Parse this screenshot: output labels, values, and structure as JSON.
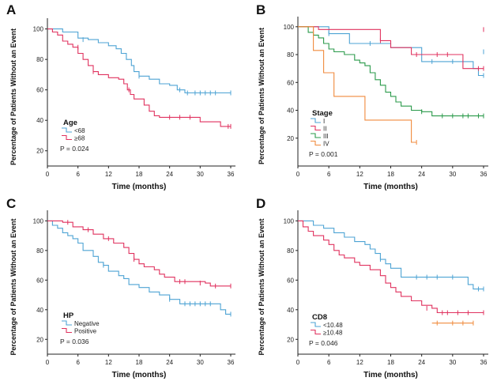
{
  "chart_data": [
    {
      "panel_label": "A",
      "type": "line",
      "step": true,
      "xlabel": "Time (months)",
      "ylabel": "Percentage of Patients Without an Event",
      "xlim": [
        0,
        36
      ],
      "ylim": [
        10,
        105
      ],
      "xticks": [
        0,
        6,
        12,
        18,
        24,
        30,
        36
      ],
      "yticks": [
        20,
        40,
        60,
        80,
        100
      ],
      "legend_title": "Age",
      "pvalue": "P = 0.024",
      "series": [
        {
          "name": "<68",
          "color": "#4da3d4",
          "points": [
            [
              0,
              100
            ],
            [
              3,
              98
            ],
            [
              6,
              94
            ],
            [
              8,
              93
            ],
            [
              10,
              91
            ],
            [
              12,
              89
            ],
            [
              13.5,
              87
            ],
            [
              14.5,
              84
            ],
            [
              15.5,
              80
            ],
            [
              16.5,
              76
            ],
            [
              17,
              72
            ],
            [
              18,
              69
            ],
            [
              20,
              67
            ],
            [
              22,
              64
            ],
            [
              24,
              63
            ],
            [
              25.5,
              60
            ],
            [
              27,
              58
            ],
            [
              36,
              58
            ]
          ],
          "censored": [
            [
              7,
              93
            ],
            [
              18,
              69
            ],
            [
              26,
              60
            ],
            [
              27.5,
              58
            ],
            [
              29,
              58
            ],
            [
              30,
              58
            ],
            [
              31,
              58
            ],
            [
              32,
              58
            ],
            [
              33,
              58
            ],
            [
              36,
              58
            ]
          ]
        },
        {
          "name": "≥68",
          "color": "#e0325f",
          "points": [
            [
              0,
              100
            ],
            [
              1,
              98
            ],
            [
              2,
              96
            ],
            [
              3,
              92
            ],
            [
              4,
              90
            ],
            [
              5,
              88
            ],
            [
              6,
              84
            ],
            [
              7,
              80
            ],
            [
              8,
              76
            ],
            [
              9,
              72
            ],
            [
              10,
              70
            ],
            [
              12,
              68
            ],
            [
              14,
              67
            ],
            [
              15,
              64
            ],
            [
              15.7,
              60
            ],
            [
              16.3,
              57
            ],
            [
              17,
              54
            ],
            [
              19,
              50
            ],
            [
              20,
              46
            ],
            [
              21,
              43
            ],
            [
              22,
              42
            ],
            [
              30,
              39
            ],
            [
              34,
              36
            ],
            [
              36,
              36
            ]
          ],
          "censored": [
            [
              6,
              88
            ],
            [
              9,
              72
            ],
            [
              16,
              60
            ],
            [
              24,
              42
            ],
            [
              26,
              42
            ],
            [
              28,
              42
            ],
            [
              35.5,
              36
            ],
            [
              36,
              36
            ]
          ]
        }
      ]
    },
    {
      "panel_label": "B",
      "type": "line",
      "step": true,
      "xlabel": "Time (months)",
      "ylabel": "Percentage of Patients Without an Event",
      "xlim": [
        0,
        36
      ],
      "ylim": [
        0,
        105
      ],
      "xticks": [
        0,
        6,
        12,
        18,
        24,
        30,
        36
      ],
      "yticks": [
        20,
        40,
        60,
        80,
        100
      ],
      "legend_title": "Stage",
      "pvalue": "P = 0.001",
      "series": [
        {
          "name": "I",
          "color": "#4da3d4",
          "points": [
            [
              0,
              100
            ],
            [
              6,
              95
            ],
            [
              10,
              88
            ],
            [
              18,
              85
            ],
            [
              24,
              75
            ],
            [
              34,
              70
            ],
            [
              35,
              65
            ],
            [
              36,
              65
            ]
          ],
          "censored": [
            [
              6,
              95
            ],
            [
              14,
              88
            ],
            [
              26,
              75
            ],
            [
              30,
              75
            ],
            [
              36,
              65
            ],
            [
              36,
              82
            ]
          ]
        },
        {
          "name": "II",
          "color": "#e0325f",
          "points": [
            [
              0,
              100
            ],
            [
              4,
              98
            ],
            [
              16,
              90
            ],
            [
              18,
              85
            ],
            [
              22,
              80
            ],
            [
              32,
              70
            ],
            [
              36,
              70
            ]
          ],
          "censored": [
            [
              3,
              98
            ],
            [
              16,
              90
            ],
            [
              23,
              80
            ],
            [
              27,
              80
            ],
            [
              29,
              80
            ],
            [
              35,
              70
            ],
            [
              36,
              70
            ],
            [
              36,
              98
            ]
          ]
        },
        {
          "name": "III",
          "color": "#2a9a4a",
          "points": [
            [
              0,
              100
            ],
            [
              2,
              96
            ],
            [
              3,
              94
            ],
            [
              4,
              92
            ],
            [
              5,
              88
            ],
            [
              6,
              84
            ],
            [
              7,
              82
            ],
            [
              9,
              80
            ],
            [
              11,
              76
            ],
            [
              12,
              74
            ],
            [
              13,
              72
            ],
            [
              14,
              67
            ],
            [
              15,
              62
            ],
            [
              16,
              58
            ],
            [
              17,
              53
            ],
            [
              18,
              50
            ],
            [
              19,
              46
            ],
            [
              20,
              43
            ],
            [
              22,
              40
            ],
            [
              24,
              39
            ],
            [
              26,
              36
            ],
            [
              36,
              36
            ]
          ],
          "censored": [
            [
              24,
              39
            ],
            [
              28,
              36
            ],
            [
              30,
              36
            ],
            [
              32,
              36
            ],
            [
              33,
              36
            ],
            [
              35,
              36
            ],
            [
              36,
              36
            ]
          ]
        },
        {
          "name": "IV",
          "color": "#f08a3c",
          "points": [
            [
              0,
              100
            ],
            [
              3,
              83
            ],
            [
              5,
              67
            ],
            [
              7,
              50
            ],
            [
              13,
              33
            ],
            [
              22,
              17
            ],
            [
              23,
              17
            ]
          ],
          "censored": [
            [
              23,
              17
            ]
          ]
        }
      ]
    },
    {
      "panel_label": "C",
      "type": "line",
      "step": true,
      "xlabel": "Time (months)",
      "ylabel": "Percentage of Patients Without an Event",
      "xlim": [
        0,
        36
      ],
      "ylim": [
        10,
        105
      ],
      "xticks": [
        0,
        6,
        12,
        18,
        24,
        30,
        36
      ],
      "yticks": [
        20,
        40,
        60,
        80,
        100
      ],
      "legend_title": "HP",
      "pvalue": "P = 0.036",
      "series": [
        {
          "name": "Negative",
          "color": "#4da3d4",
          "points": [
            [
              0,
              100
            ],
            [
              1,
              97
            ],
            [
              2,
              95
            ],
            [
              3,
              92
            ],
            [
              4,
              90
            ],
            [
              5,
              88
            ],
            [
              6,
              85
            ],
            [
              7,
              80
            ],
            [
              9,
              76
            ],
            [
              10,
              72
            ],
            [
              11,
              70
            ],
            [
              12,
              66
            ],
            [
              14,
              63
            ],
            [
              15,
              61
            ],
            [
              16,
              57
            ],
            [
              18,
              55
            ],
            [
              20,
              52
            ],
            [
              22,
              50
            ],
            [
              24,
              47
            ],
            [
              26,
              44
            ],
            [
              34,
              40
            ],
            [
              35,
              37
            ],
            [
              36,
              37
            ]
          ],
          "censored": [
            [
              11,
              70
            ],
            [
              24,
              47
            ],
            [
              27,
              44
            ],
            [
              28,
              44
            ],
            [
              29,
              44
            ],
            [
              30,
              44
            ],
            [
              31,
              44
            ],
            [
              32,
              44
            ],
            [
              36,
              37
            ]
          ]
        },
        {
          "name": "Positive",
          "color": "#e0325f",
          "points": [
            [
              0,
              100
            ],
            [
              3,
              99
            ],
            [
              5,
              96
            ],
            [
              7,
              94
            ],
            [
              9,
              91
            ],
            [
              11,
              88
            ],
            [
              13,
              85
            ],
            [
              15,
              82
            ],
            [
              16,
              78
            ],
            [
              17,
              74
            ],
            [
              18,
              71
            ],
            [
              19,
              69
            ],
            [
              21,
              67
            ],
            [
              22,
              64
            ],
            [
              23,
              62
            ],
            [
              25,
              59
            ],
            [
              31,
              58
            ],
            [
              32,
              56
            ],
            [
              36,
              56
            ]
          ],
          "censored": [
            [
              4,
              99
            ],
            [
              8,
              94
            ],
            [
              12,
              88
            ],
            [
              17,
              74
            ],
            [
              26,
              59
            ],
            [
              27,
              59
            ],
            [
              30,
              58
            ],
            [
              33,
              56
            ],
            [
              36,
              56
            ]
          ]
        }
      ]
    },
    {
      "panel_label": "D",
      "type": "line",
      "step": true,
      "xlabel": "Time (months)",
      "ylabel": "Percentage of Patients Without an Event",
      "xlim": [
        0,
        36
      ],
      "ylim": [
        10,
        105
      ],
      "xticks": [
        0,
        6,
        12,
        18,
        24,
        30,
        36
      ],
      "yticks": [
        20,
        40,
        60,
        80,
        100
      ],
      "legend_title": "CD8",
      "pvalue": "P = 0.046",
      "series": [
        {
          "name": "<10.48",
          "color": "#4da3d4",
          "points": [
            [
              0,
              100
            ],
            [
              3,
              97
            ],
            [
              5,
              95
            ],
            [
              7,
              92
            ],
            [
              9,
              89
            ],
            [
              11,
              86
            ],
            [
              13,
              84
            ],
            [
              14,
              81
            ],
            [
              15,
              78
            ],
            [
              16,
              74
            ],
            [
              17,
              71
            ],
            [
              18,
              68
            ],
            [
              20,
              62
            ],
            [
              33,
              57
            ],
            [
              34,
              54
            ],
            [
              36,
              54
            ]
          ],
          "censored": [
            [
              16,
              74
            ],
            [
              23,
              62
            ],
            [
              25,
              62
            ],
            [
              27,
              62
            ],
            [
              30,
              62
            ],
            [
              35,
              54
            ],
            [
              36,
              54
            ]
          ]
        },
        {
          "name": "≥10.48",
          "color": "#e0325f",
          "points": [
            [
              0,
              100
            ],
            [
              1,
              96
            ],
            [
              2,
              93
            ],
            [
              3,
              90
            ],
            [
              5,
              87
            ],
            [
              6,
              84
            ],
            [
              7,
              80
            ],
            [
              8,
              77
            ],
            [
              9,
              75
            ],
            [
              11,
              72
            ],
            [
              12,
              70
            ],
            [
              14,
              67
            ],
            [
              16,
              63
            ],
            [
              17,
              58
            ],
            [
              18,
              55
            ],
            [
              19,
              52
            ],
            [
              20,
              49
            ],
            [
              22,
              46
            ],
            [
              24,
              43
            ],
            [
              26,
              41
            ],
            [
              27,
              38
            ],
            [
              36,
              38
            ]
          ],
          "censored": [
            [
              25,
              41
            ],
            [
              28,
              38
            ],
            [
              29,
              38
            ],
            [
              31,
              38
            ],
            [
              33,
              38
            ],
            [
              36,
              38
            ]
          ]
        },
        {
          "name": "",
          "color": "#f08a3c",
          "points": [
            [
              26,
              31
            ],
            [
              34,
              31
            ]
          ],
          "censored": [
            [
              27,
              31
            ],
            [
              30,
              31
            ],
            [
              32,
              31
            ],
            [
              34,
              31
            ]
          ]
        }
      ]
    }
  ]
}
